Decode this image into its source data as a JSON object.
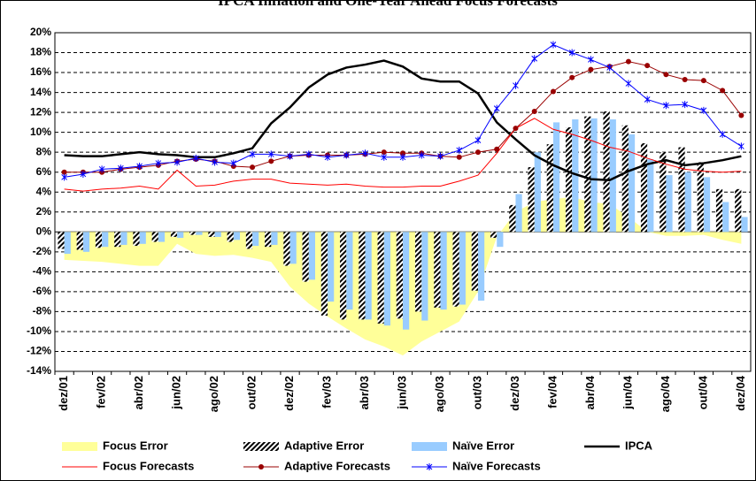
{
  "chart_data": {
    "type": "combo",
    "title": "IPCA Inflation and One-Year Ahead Focus Forecasts",
    "categories": [
      "dez/01",
      null,
      "fev/02",
      null,
      "abr/02",
      null,
      "jun/02",
      null,
      "ago/02",
      null,
      "out/02",
      null,
      "dez/02",
      null,
      "fev/03",
      null,
      "abr/03",
      null,
      "jun/03",
      null,
      "ago/03",
      null,
      "out/03",
      null,
      "dez/03",
      null,
      "fev/04",
      null,
      "abr/04",
      null,
      "jun/04",
      null,
      "ago/04",
      null,
      "out/04",
      null,
      "dez/04"
    ],
    "ylim": [
      -14,
      20
    ],
    "yticks": [
      {
        "value": -14,
        "label": "-14%"
      },
      {
        "value": -12,
        "label": "-12%"
      },
      {
        "value": -10,
        "label": "-10%"
      },
      {
        "value": -8,
        "label": "-8%"
      },
      {
        "value": -6,
        "label": "-6%"
      },
      {
        "value": -4,
        "label": "-4%"
      },
      {
        "value": -2,
        "label": "-2%"
      },
      {
        "value": 0,
        "label": "0%"
      },
      {
        "value": 2,
        "label": "2%"
      },
      {
        "value": 4,
        "label": "4%"
      },
      {
        "value": 6,
        "label": "6%"
      },
      {
        "value": 8,
        "label": "8%"
      },
      {
        "value": 10,
        "label": "10%"
      },
      {
        "value": 12,
        "label": "12%"
      },
      {
        "value": 14,
        "label": "14%"
      },
      {
        "value": 16,
        "label": "16%"
      },
      {
        "value": 18,
        "label": "18%"
      },
      {
        "value": 20,
        "label": "20%"
      }
    ],
    "grid": true,
    "legend": "bottom",
    "series": [
      {
        "name": "Focus Error",
        "type": "area",
        "color": "#ffff99",
        "values": [
          -2.8,
          -2.9,
          -3.0,
          -3.2,
          -3.4,
          -3.4,
          -1.2,
          -2.2,
          -2.4,
          -2.3,
          -2.6,
          -3.0,
          -5.5,
          -7.2,
          -8.5,
          -9.7,
          -10.8,
          -11.5,
          -12.4,
          -11.0,
          -10.0,
          -9.0,
          -6.0,
          -0.5,
          2.0,
          3.0,
          3.3,
          3.5,
          3.0,
          2.8,
          1.5,
          0.0,
          -0.4,
          -0.4,
          -0.3,
          -0.8,
          -1.2
        ]
      },
      {
        "name": "Adaptive Error",
        "type": "bar",
        "pattern": "hatch",
        "color": "#000000",
        "values": [
          -1.7,
          -1.8,
          -1.6,
          -1.5,
          -1.4,
          -1.0,
          -0.5,
          -0.3,
          -0.5,
          -1.0,
          -1.7,
          -1.5,
          -3.4,
          -5.0,
          -8.4,
          -8.8,
          -8.8,
          -9.2,
          -8.7,
          -8.0,
          -7.6,
          -7.5,
          -5.9,
          -0.6,
          2.7,
          6.5,
          8.8,
          10.5,
          11.6,
          12.1,
          10.7,
          8.9,
          8.0,
          8.5,
          7.0,
          4.3,
          4.3
        ]
      },
      {
        "name": "Naïve Error",
        "type": "bar",
        "color": "#99ccff",
        "values": [
          -2.2,
          -2.0,
          -1.5,
          -1.3,
          -1.2,
          -1.0,
          -0.6,
          -0.3,
          -0.5,
          -0.8,
          -1.4,
          -1.3,
          -3.2,
          -4.8,
          -7.0,
          -7.8,
          -8.8,
          -9.4,
          -9.8,
          -8.9,
          -7.8,
          -7.3,
          -6.9,
          -1.5,
          3.8,
          8.0,
          11.0,
          11.3,
          11.4,
          11.3,
          9.8,
          7.3,
          5.7,
          6.0,
          5.5,
          3.0,
          1.5
        ]
      },
      {
        "name": "IPCA",
        "type": "line",
        "color": "#000000",
        "line_width": 2.5,
        "values": [
          7.7,
          7.6,
          7.6,
          7.8,
          8.0,
          7.8,
          7.7,
          7.5,
          7.5,
          7.9,
          8.4,
          10.9,
          12.5,
          14.5,
          15.8,
          16.5,
          16.8,
          17.2,
          16.6,
          15.4,
          15.1,
          15.1,
          13.9,
          11.0,
          9.3,
          7.7,
          6.7,
          5.9,
          5.3,
          5.2,
          6.1,
          6.8,
          7.2,
          6.7,
          6.9,
          7.2,
          7.6
        ]
      },
      {
        "name": "Focus Forecasts",
        "type": "line",
        "color": "#ff0000",
        "line_width": 1,
        "values": [
          4.3,
          4.1,
          4.3,
          4.4,
          4.6,
          4.3,
          6.2,
          4.6,
          4.7,
          5.1,
          5.3,
          5.3,
          4.9,
          4.8,
          4.7,
          4.8,
          4.6,
          4.5,
          4.5,
          4.6,
          4.6,
          5.1,
          5.7,
          7.9,
          10.4,
          11.4,
          10.3,
          9.8,
          9.2,
          8.5,
          8.1,
          7.4,
          6.8,
          6.3,
          6.1,
          6.0,
          6.1
        ]
      },
      {
        "name": "Adaptive Forecasts",
        "type": "line",
        "marker": "circle",
        "color": "#990000",
        "line_width": 1,
        "values": [
          6.0,
          6.0,
          6.0,
          6.3,
          6.5,
          6.7,
          7.1,
          7.3,
          7.1,
          6.6,
          6.5,
          7.1,
          7.6,
          7.7,
          7.7,
          7.7,
          7.8,
          8.0,
          7.9,
          7.9,
          7.6,
          7.5,
          8.0,
          8.3,
          10.4,
          12.1,
          14.1,
          15.5,
          16.3,
          16.6,
          17.1,
          16.7,
          15.8,
          15.3,
          15.2,
          14.2,
          11.7
        ]
      },
      {
        "name": "Naïve Forecasts",
        "type": "line",
        "marker": "x",
        "color": "#0000ff",
        "line_width": 1,
        "values": [
          5.5,
          5.8,
          6.3,
          6.4,
          6.6,
          6.9,
          7.0,
          7.4,
          7.0,
          6.9,
          7.8,
          7.8,
          7.6,
          7.8,
          7.5,
          7.7,
          7.9,
          7.5,
          7.5,
          7.7,
          7.6,
          8.2,
          9.2,
          12.4,
          14.7,
          17.4,
          18.8,
          18.0,
          17.3,
          16.5,
          14.9,
          13.3,
          12.7,
          12.8,
          12.2,
          9.8,
          8.6
        ]
      }
    ]
  }
}
